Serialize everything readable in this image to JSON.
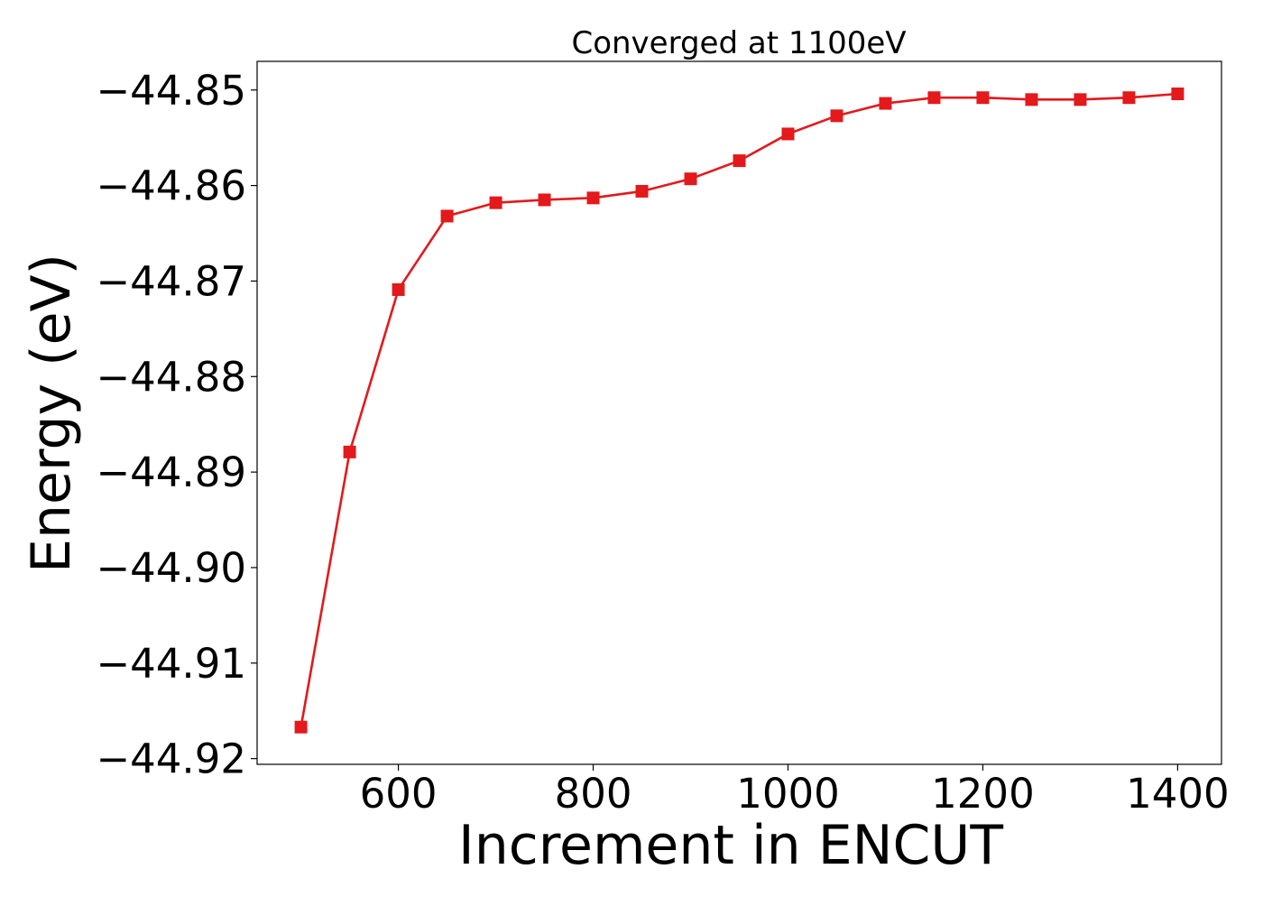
{
  "chart_data": {
    "type": "line",
    "title": "Converged at 1100eV",
    "xlabel": "Increment in ENCUT",
    "ylabel": "Energy (eV)",
    "x": [
      500,
      550,
      600,
      650,
      700,
      750,
      800,
      850,
      900,
      950,
      1000,
      1050,
      1100,
      1150,
      1200,
      1250,
      1300,
      1350,
      1400
    ],
    "series": [
      {
        "name": "",
        "marker": "square",
        "color": "#e3191c",
        "values": [
          -44.9167,
          -44.8879,
          -44.8709,
          -44.8632,
          -44.8618,
          -44.8615,
          -44.8613,
          -44.8606,
          -44.8593,
          -44.8574,
          -44.8546,
          -44.8527,
          -44.8514,
          -44.8508,
          -44.8508,
          -44.851,
          -44.851,
          -44.8508,
          -44.8504
        ]
      }
    ],
    "xticks": [
      600,
      800,
      1000,
      1200,
      1400
    ],
    "xtick_labels": [
      "600",
      "800",
      "1000",
      "1200",
      "1400"
    ],
    "yticks": [
      -44.85,
      -44.86,
      -44.87,
      -44.88,
      -44.89,
      -44.9,
      -44.91,
      -44.92
    ],
    "ytick_labels": [
      "−44.85",
      "−44.86",
      "−44.87",
      "−44.88",
      "−44.89",
      "−44.90",
      "−44.91",
      "−44.92"
    ],
    "xlim": [
      455,
      1445
    ],
    "ylim": [
      -44.9206,
      -44.847
    ],
    "grid": false,
    "legend": "none"
  }
}
